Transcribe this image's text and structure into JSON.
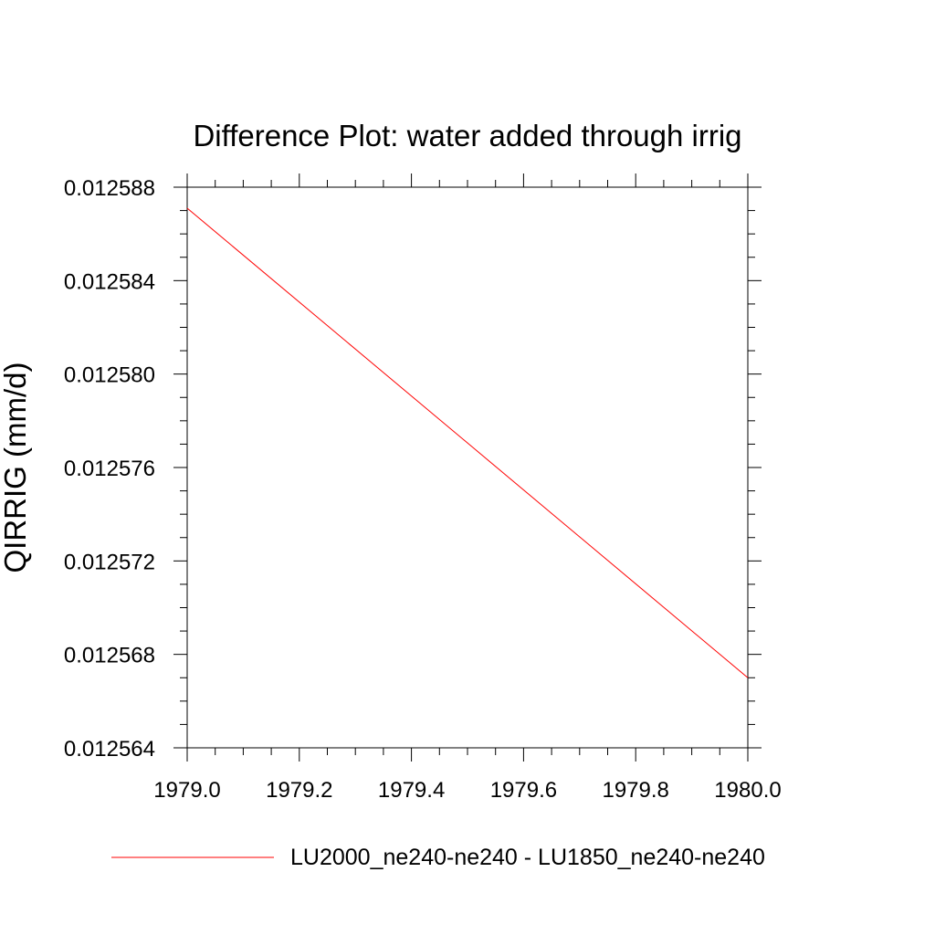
{
  "chart_data": {
    "type": "line",
    "title": "Difference Plot: water added through irrig",
    "ylabel": "QIRRIG  (mm/d)",
    "xlabel": "",
    "xlim": [
      1979.0,
      1980.0
    ],
    "ylim": [
      0.012564,
      0.012588
    ],
    "x_ticks": [
      "1979.0",
      "1979.2",
      "1979.4",
      "1979.6",
      "1979.8",
      "1980.0"
    ],
    "y_ticks": [
      "0.012564",
      "0.012568",
      "0.012572",
      "0.012576",
      "0.012580",
      "0.012584",
      "0.012588"
    ],
    "grid": false,
    "legend_position": "bottom",
    "series": [
      {
        "name": "LU2000_ne240-ne240 - LU1850_ne240-ne240",
        "color": "#ff0000",
        "x": [
          1979.0,
          1980.0
        ],
        "y": [
          0.0125871,
          0.012567
        ]
      }
    ]
  }
}
